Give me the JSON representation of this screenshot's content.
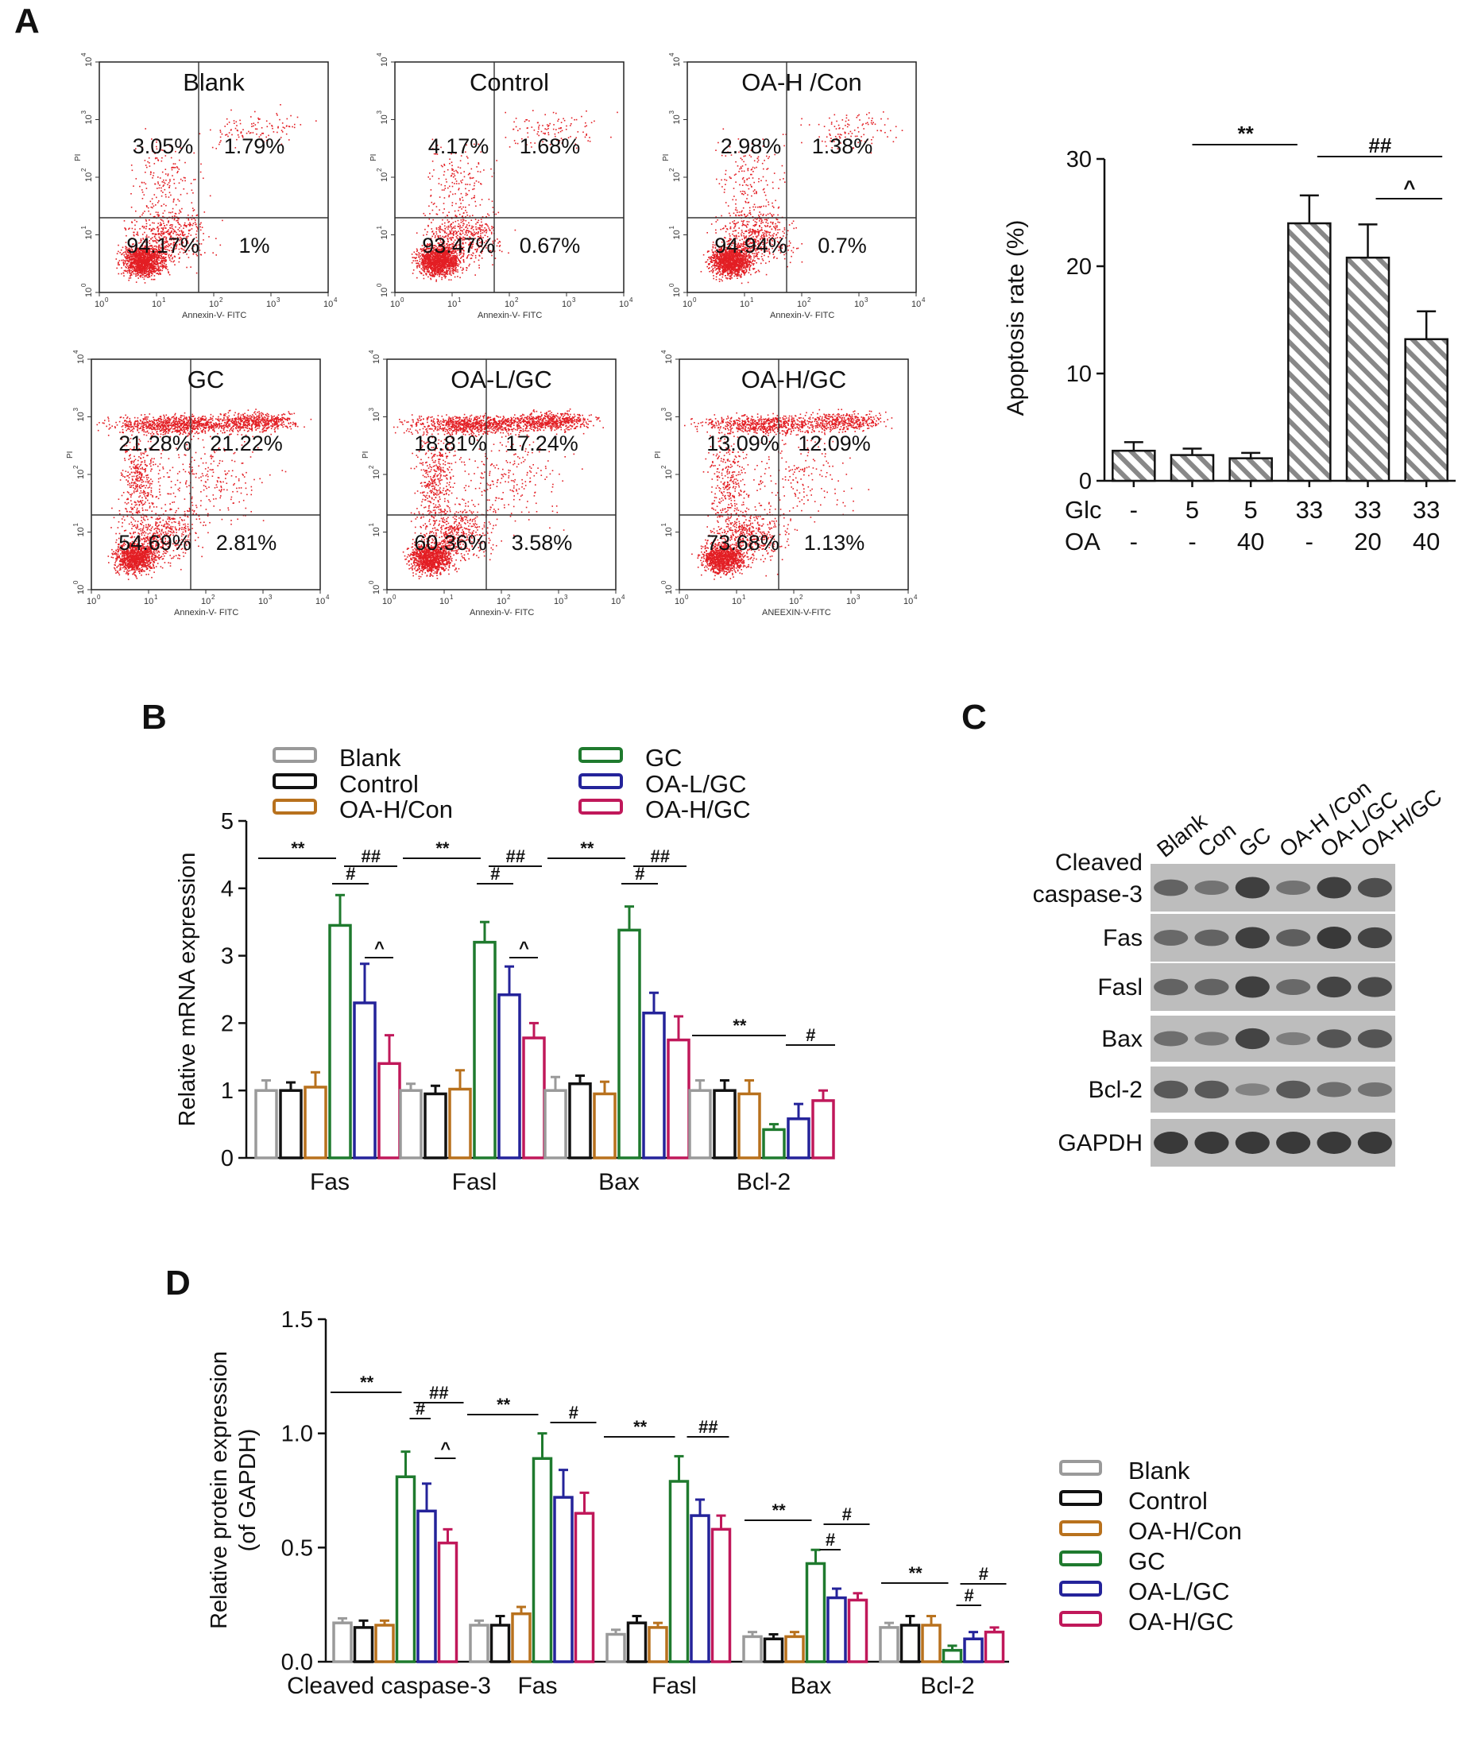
{
  "colors": {
    "dot": "#e31e24",
    "blank": "#9a9a9a",
    "control": "#111111",
    "oa_h_con": "#b8711d",
    "gc": "#1f7a2e",
    "oa_l_gc": "#24239a",
    "oa_h_gc": "#c0185a",
    "blot_bg": "#bdbdbd"
  },
  "panels": {
    "a": "A",
    "b": "B",
    "c": "C",
    "d": "D"
  },
  "flow": {
    "plots": [
      {
        "title": "Blank",
        "ul": "3.05%",
        "ur": "1.79%",
        "ll": "94.17%",
        "lr": "1%",
        "xlabel": "Annexin-V- FITC",
        "ylabel": "PI",
        "density": "low"
      },
      {
        "title": "Control",
        "ul": "4.17%",
        "ur": "1.68%",
        "ll": "93.47%",
        "lr": "0.67%",
        "xlabel": "Annexin-V- FITC",
        "ylabel": "PI",
        "density": "low"
      },
      {
        "title": "OA-H /Con",
        "ul": "2.98%",
        "ur": "1.38%",
        "ll": "94.94%",
        "lr": "0.7%",
        "xlabel": "Annexin-V- FITC",
        "ylabel": "PI",
        "density": "low"
      },
      {
        "title": "GC",
        "ul": "21.28%",
        "ur": "21.22%",
        "ll": "54.69%",
        "lr": "2.81%",
        "xlabel": "Annexin-V- FITC",
        "ylabel": "PI",
        "density": "high"
      },
      {
        "title": "OA-L/GC",
        "ul": "18.81%",
        "ur": "17.24%",
        "ll": "60.36%",
        "lr": "3.58%",
        "xlabel": "Annexin-V- FITC",
        "ylabel": "PI",
        "density": "high"
      },
      {
        "title": "OA-H/GC",
        "ul": "13.09%",
        "ur": "12.09%",
        "ll": "73.68%",
        "lr": "1.13%",
        "xlabel": "ANEEXIN-V-FITC",
        "ylabel": "PI",
        "density": "mid"
      }
    ],
    "ticks": [
      "10",
      "10",
      "10",
      "10",
      "10"
    ],
    "exponents": [
      "0",
      "1",
      "2",
      "3",
      "4"
    ]
  },
  "chart_data": [
    {
      "type": "bar",
      "ylabel": "Apoptosis rate (%)",
      "ylim": [
        0,
        30
      ],
      "yticks": [
        "0",
        "10",
        "20",
        "30"
      ],
      "row_labels": [
        "Glc",
        "OA"
      ],
      "glc": [
        "-",
        "5",
        "5",
        "33",
        "33",
        "33"
      ],
      "oa": [
        "-",
        "-",
        "40",
        "-",
        "20",
        "40"
      ],
      "values": [
        2.8,
        2.4,
        2.1,
        24.0,
        20.8,
        13.2
      ],
      "errors": [
        0.8,
        0.6,
        0.5,
        2.6,
        3.1,
        2.6
      ],
      "sig": [
        "**",
        "##",
        "^"
      ]
    },
    {
      "type": "bar",
      "ylabel": "Relative mRNA expression",
      "ylim": [
        0,
        5
      ],
      "yticks": [
        "0",
        "1",
        "2",
        "3",
        "4",
        "5"
      ],
      "categories": [
        "Fas",
        "Fasl",
        "Bax",
        "Bcl-2"
      ],
      "series": [
        {
          "name": "Blank",
          "values": [
            1.0,
            1.0,
            1.0,
            1.0
          ],
          "errors": [
            0.15,
            0.1,
            0.2,
            0.15
          ]
        },
        {
          "name": "Control",
          "values": [
            1.0,
            0.95,
            1.1,
            1.0
          ],
          "errors": [
            0.12,
            0.12,
            0.12,
            0.15
          ]
        },
        {
          "name": "OA-H/Con",
          "values": [
            1.05,
            1.02,
            0.95,
            0.95
          ],
          "errors": [
            0.22,
            0.28,
            0.18,
            0.2
          ]
        },
        {
          "name": "GC",
          "values": [
            3.45,
            3.2,
            3.38,
            0.42
          ],
          "errors": [
            0.45,
            0.3,
            0.35,
            0.08
          ]
        },
        {
          "name": "OA-L/GC",
          "values": [
            2.3,
            2.42,
            2.15,
            0.58
          ],
          "errors": [
            0.58,
            0.42,
            0.3,
            0.22
          ]
        },
        {
          "name": "OA-H/GC",
          "values": [
            1.4,
            1.78,
            1.75,
            0.85
          ],
          "errors": [
            0.42,
            0.22,
            0.35,
            0.15
          ]
        }
      ],
      "sig": [
        "**",
        "#",
        "##",
        "^",
        "**",
        "#",
        "##",
        "^",
        "**",
        "#",
        "##",
        "**",
        "#"
      ]
    },
    {
      "type": "bar",
      "ylabel": "Relative protein expression",
      "ylabel2": "(of GAPDH)",
      "ylim": [
        0,
        1.5
      ],
      "yticks": [
        "0.0",
        "0.5",
        "1.0",
        "1.5"
      ],
      "categories": [
        "Cleaved caspase-3",
        "Fas",
        "Fasl",
        "Bax",
        "Bcl-2"
      ],
      "series": [
        {
          "name": "Blank",
          "values": [
            0.17,
            0.16,
            0.12,
            0.11,
            0.15
          ],
          "errors": [
            0.02,
            0.02,
            0.02,
            0.02,
            0.02
          ]
        },
        {
          "name": "Control",
          "values": [
            0.15,
            0.16,
            0.17,
            0.1,
            0.16
          ],
          "errors": [
            0.03,
            0.04,
            0.03,
            0.02,
            0.04
          ]
        },
        {
          "name": "OA-H/Con",
          "values": [
            0.16,
            0.21,
            0.15,
            0.11,
            0.16
          ],
          "errors": [
            0.02,
            0.03,
            0.02,
            0.02,
            0.04
          ]
        },
        {
          "name": "GC",
          "values": [
            0.81,
            0.89,
            0.79,
            0.43,
            0.05
          ],
          "errors": [
            0.11,
            0.11,
            0.11,
            0.06,
            0.02
          ]
        },
        {
          "name": "OA-L/GC",
          "values": [
            0.66,
            0.72,
            0.64,
            0.28,
            0.1
          ],
          "errors": [
            0.12,
            0.12,
            0.07,
            0.04,
            0.03
          ]
        },
        {
          "name": "OA-H/GC",
          "values": [
            0.52,
            0.65,
            0.58,
            0.27,
            0.13
          ],
          "errors": [
            0.06,
            0.09,
            0.06,
            0.03,
            0.02
          ]
        }
      ],
      "sig": [
        "**",
        "#",
        "##",
        "^",
        "**",
        "#",
        "**",
        "##",
        "**",
        "#",
        "#",
        "**",
        "#",
        "#"
      ]
    }
  ],
  "blot": {
    "lanes": [
      "Blank",
      "Con",
      "GC",
      "OA-H /Con",
      "OA-L/GC",
      "OA-H/GC"
    ],
    "rows": [
      {
        "label": "Cleaved\ncaspase-3",
        "intensity": [
          0.6,
          0.45,
          0.95,
          0.45,
          0.95,
          0.8
        ]
      },
      {
        "label": "Fas",
        "intensity": [
          0.55,
          0.6,
          0.95,
          0.65,
          1.0,
          0.9
        ]
      },
      {
        "label": "Fasl",
        "intensity": [
          0.6,
          0.6,
          0.95,
          0.55,
          0.9,
          0.85
        ]
      },
      {
        "label": "Bax",
        "intensity": [
          0.5,
          0.4,
          0.9,
          0.35,
          0.75,
          0.75
        ]
      },
      {
        "label": "Bcl-2",
        "intensity": [
          0.7,
          0.7,
          0.3,
          0.7,
          0.5,
          0.45
        ]
      },
      {
        "label": "GAPDH",
        "intensity": [
          1.0,
          1.0,
          1.0,
          1.0,
          1.0,
          1.0
        ]
      }
    ]
  }
}
